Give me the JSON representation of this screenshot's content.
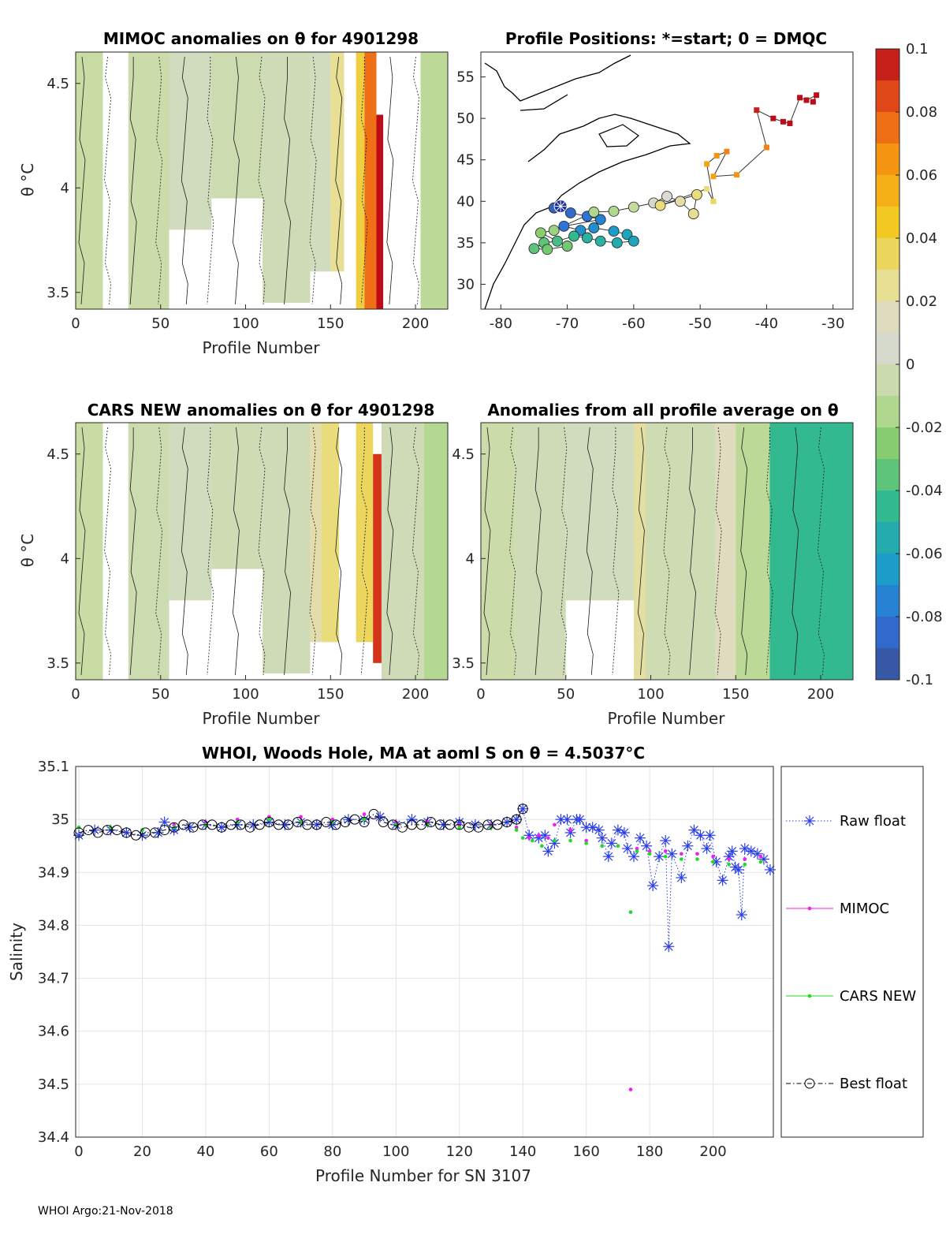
{
  "chart_data": [
    {
      "id": "mimoc",
      "type": "heatmap",
      "title": "MIMOC anomalies on θ  for 4901298",
      "xlabel": "Profile Number",
      "ylabel": "θ °C",
      "xlim": [
        0,
        219
      ],
      "ylim": [
        3.42,
        4.65
      ],
      "xticks": [
        0,
        50,
        100,
        150,
        200
      ],
      "yticks": [
        3.5,
        4,
        4.5
      ],
      "bands": [
        {
          "x0": 0,
          "x1": 16,
          "y0": 3.42,
          "y1": 4.65,
          "v": -0.008
        },
        {
          "x0": 31,
          "x1": 55,
          "y0": 3.42,
          "y1": 4.65,
          "v": -0.006
        },
        {
          "x0": 55,
          "x1": 80,
          "y0": 3.8,
          "y1": 4.65,
          "v": 0.0
        },
        {
          "x0": 80,
          "x1": 110,
          "y0": 3.95,
          "y1": 4.65,
          "v": -0.004
        },
        {
          "x0": 110,
          "x1": 138,
          "y0": 3.45,
          "y1": 4.65,
          "v": -0.002
        },
        {
          "x0": 138,
          "x1": 150,
          "y0": 3.6,
          "y1": 4.65,
          "v": 0.0
        },
        {
          "x0": 150,
          "x1": 158,
          "y0": 3.6,
          "y1": 4.65,
          "v": 0.025
        },
        {
          "x0": 165,
          "x1": 170,
          "y0": 3.42,
          "y1": 4.65,
          "v": 0.04
        },
        {
          "x0": 170,
          "x1": 177,
          "y0": 3.42,
          "y1": 4.65,
          "v": 0.075
        },
        {
          "x0": 177,
          "x1": 181,
          "y0": 3.42,
          "y1": 4.35,
          "v": 0.1
        },
        {
          "x0": 203,
          "x1": 219,
          "y0": 3.42,
          "y1": 4.65,
          "v": -0.012
        }
      ]
    },
    {
      "id": "map",
      "type": "scatter",
      "title": "Profile Positions: *=start; 0 = DMQC",
      "xlim": [
        -83,
        -27
      ],
      "ylim": [
        27,
        58
      ],
      "xticks": [
        -80,
        -70,
        -60,
        -50,
        -40,
        -30
      ],
      "yticks": [
        30,
        35,
        40,
        45,
        50,
        55
      ],
      "start": {
        "lon": -71,
        "lat": 39.4
      },
      "dmqc_points": [
        {
          "lon": -72,
          "lat": 39.2,
          "v": -0.09
        },
        {
          "lon": -69.5,
          "lat": 38.6,
          "v": -0.085
        },
        {
          "lon": -67,
          "lat": 38.2,
          "v": -0.08
        },
        {
          "lon": -65,
          "lat": 37.8,
          "v": -0.075
        },
        {
          "lon": -70.5,
          "lat": 37.0,
          "v": -0.08
        },
        {
          "lon": -68,
          "lat": 36.5,
          "v": -0.07
        },
        {
          "lon": -66,
          "lat": 36.8,
          "v": -0.07
        },
        {
          "lon": -63,
          "lat": 36.4,
          "v": -0.065
        },
        {
          "lon": -61,
          "lat": 36.0,
          "v": -0.06
        },
        {
          "lon": -60,
          "lat": 35.2,
          "v": -0.06
        },
        {
          "lon": -62.5,
          "lat": 35.0,
          "v": -0.055
        },
        {
          "lon": -65,
          "lat": 35.2,
          "v": -0.05
        },
        {
          "lon": -67,
          "lat": 35.6,
          "v": -0.05
        },
        {
          "lon": -69,
          "lat": 35.8,
          "v": -0.045
        },
        {
          "lon": -71.5,
          "lat": 35.2,
          "v": -0.04
        },
        {
          "lon": -73.5,
          "lat": 35.0,
          "v": -0.035
        },
        {
          "lon": -75,
          "lat": 34.3,
          "v": -0.035
        },
        {
          "lon": -73,
          "lat": 34.2,
          "v": -0.03
        },
        {
          "lon": -70,
          "lat": 34.6,
          "v": -0.03
        },
        {
          "lon": -74,
          "lat": 36.2,
          "v": -0.025
        },
        {
          "lon": -72,
          "lat": 36.5,
          "v": -0.02
        },
        {
          "lon": -66,
          "lat": 38.7,
          "v": -0.015
        },
        {
          "lon": -63,
          "lat": 38.8,
          "v": -0.015
        },
        {
          "lon": -60,
          "lat": 39.3,
          "v": -0.01
        },
        {
          "lon": -57,
          "lat": 39.8,
          "v": 0.005
        },
        {
          "lon": -55,
          "lat": 40.6,
          "v": 0.01
        },
        {
          "lon": -53,
          "lat": 40.0,
          "v": 0.02
        },
        {
          "lon": -51,
          "lat": 38.5,
          "v": 0.025
        },
        {
          "lon": -50.5,
          "lat": 40.8,
          "v": 0.03
        },
        {
          "lon": -56,
          "lat": 39.5,
          "v": 0.03
        }
      ],
      "realtime_points": [
        {
          "lon": -49,
          "lat": 41.5,
          "v": 0.03
        },
        {
          "lon": -48,
          "lat": 40.0,
          "v": 0.035
        },
        {
          "lon": -49,
          "lat": 44.5,
          "v": 0.06
        },
        {
          "lon": -47.5,
          "lat": 45.5,
          "v": 0.065
        },
        {
          "lon": -46,
          "lat": 46.0,
          "v": 0.07
        },
        {
          "lon": -48,
          "lat": 43.0,
          "v": 0.06
        },
        {
          "lon": -44.5,
          "lat": 43.2,
          "v": 0.065
        },
        {
          "lon": -40,
          "lat": 46.5,
          "v": 0.07
        },
        {
          "lon": -41.5,
          "lat": 51.0,
          "v": 0.095
        },
        {
          "lon": -39,
          "lat": 50.0,
          "v": 0.1
        },
        {
          "lon": -37.5,
          "lat": 49.6,
          "v": 0.1
        },
        {
          "lon": -36.5,
          "lat": 49.4,
          "v": 0.1
        },
        {
          "lon": -35,
          "lat": 52.5,
          "v": 0.1
        },
        {
          "lon": -34,
          "lat": 52.2,
          "v": 0.1
        },
        {
          "lon": -32.5,
          "lat": 52.8,
          "v": 0.1
        },
        {
          "lon": -33,
          "lat": 52.0,
          "v": 0.1
        }
      ]
    },
    {
      "id": "colorbar",
      "type": "colorbar",
      "ticks": [
        "0.1",
        "0.08",
        "0.06",
        "0.04",
        "0.02",
        "0",
        "-0.02",
        "-0.04",
        "-0.06",
        "-0.08",
        "-0.1"
      ],
      "range": [
        -0.1,
        0.1
      ],
      "stops": [
        "#3a4f95",
        "#2f6fd8",
        "#1aa0c8",
        "#30b890",
        "#7fcc6a",
        "#c8dca0",
        "#d9d9d9",
        "#e8e08a",
        "#f2c81f",
        "#f79a10",
        "#e8551a",
        "#bb0c1a"
      ]
    },
    {
      "id": "cars",
      "type": "heatmap",
      "title": "CARS NEW anomalies on θ for 4901298",
      "xlabel": "Profile Number",
      "ylabel": "θ °C",
      "xlim": [
        0,
        219
      ],
      "ylim": [
        3.42,
        4.65
      ],
      "xticks": [
        0,
        50,
        100,
        150,
        200
      ],
      "yticks": [
        3.5,
        4,
        4.5
      ],
      "bands": [
        {
          "x0": 0,
          "x1": 16,
          "y0": 3.42,
          "y1": 4.65,
          "v": -0.008
        },
        {
          "x0": 31,
          "x1": 55,
          "y0": 3.42,
          "y1": 4.65,
          "v": -0.004
        },
        {
          "x0": 55,
          "x1": 80,
          "y0": 3.8,
          "y1": 4.65,
          "v": 0.0
        },
        {
          "x0": 80,
          "x1": 110,
          "y0": 3.95,
          "y1": 4.65,
          "v": -0.003
        },
        {
          "x0": 110,
          "x1": 138,
          "y0": 3.45,
          "y1": 4.65,
          "v": -0.002
        },
        {
          "x0": 138,
          "x1": 145,
          "y0": 3.6,
          "y1": 4.65,
          "v": 0.02
        },
        {
          "x0": 145,
          "x1": 155,
          "y0": 3.6,
          "y1": 4.65,
          "v": 0.03
        },
        {
          "x0": 165,
          "x1": 175,
          "y0": 3.6,
          "y1": 4.65,
          "v": 0.035
        },
        {
          "x0": 175,
          "x1": 180,
          "y0": 3.5,
          "y1": 4.5,
          "v": 0.09
        },
        {
          "x0": 180,
          "x1": 205,
          "y0": 3.42,
          "y1": 4.65,
          "v": -0.002
        },
        {
          "x0": 205,
          "x1": 219,
          "y0": 3.42,
          "y1": 4.65,
          "v": -0.014
        }
      ]
    },
    {
      "id": "allavg",
      "type": "heatmap",
      "title": "Anomalies from all profile average on θ",
      "xlabel": "Profile Number",
      "xlim": [
        0,
        219
      ],
      "ylim": [
        3.42,
        4.65
      ],
      "xticks": [
        0,
        50,
        100,
        150,
        200
      ],
      "yticks": [
        3.5,
        4,
        4.5
      ],
      "bands": [
        {
          "x0": 0,
          "x1": 20,
          "y0": 3.42,
          "y1": 4.65,
          "v": -0.006
        },
        {
          "x0": 20,
          "x1": 50,
          "y0": 3.42,
          "y1": 4.65,
          "v": -0.002
        },
        {
          "x0": 50,
          "x1": 90,
          "y0": 3.8,
          "y1": 4.65,
          "v": 0.0
        },
        {
          "x0": 90,
          "x1": 97,
          "y0": 3.42,
          "y1": 4.65,
          "v": 0.022
        },
        {
          "x0": 97,
          "x1": 138,
          "y0": 3.42,
          "y1": 4.65,
          "v": -0.003
        },
        {
          "x0": 138,
          "x1": 150,
          "y0": 3.42,
          "y1": 4.65,
          "v": 0.015
        },
        {
          "x0": 150,
          "x1": 170,
          "y0": 3.42,
          "y1": 4.65,
          "v": -0.012
        },
        {
          "x0": 170,
          "x1": 219,
          "y0": 3.42,
          "y1": 4.65,
          "v": -0.045
        }
      ]
    },
    {
      "id": "salinity",
      "type": "line",
      "title": "WHOI, Woods Hole, MA at aoml S on θ = 4.5037°C",
      "xlabel": "Profile Number for SN 3107",
      "ylabel": "Salinity",
      "xlim": [
        -1,
        219
      ],
      "ylim": [
        34.4,
        35.1
      ],
      "xticks": [
        0,
        20,
        40,
        60,
        80,
        100,
        120,
        140,
        160,
        180,
        200
      ],
      "yticks": [
        34.4,
        34.5,
        34.6,
        34.7,
        34.8,
        34.9,
        35,
        35.1
      ],
      "grid": true,
      "legend_position": "outside-right",
      "series": [
        {
          "name": "Raw float",
          "x": [
            0,
            5,
            10,
            15,
            20,
            25,
            27,
            30,
            35,
            40,
            45,
            50,
            55,
            60,
            65,
            70,
            75,
            80,
            85,
            90,
            95,
            100,
            105,
            110,
            115,
            120,
            125,
            130,
            135,
            138,
            140,
            142,
            145,
            147,
            148,
            150,
            152,
            154,
            155,
            157,
            158,
            160,
            162,
            164,
            165,
            167,
            168,
            170,
            172,
            173,
            175,
            177,
            179,
            181,
            183,
            185,
            186,
            187,
            190,
            192,
            194,
            196,
            198,
            199,
            201,
            203,
            205,
            206,
            207,
            208,
            209,
            210,
            212,
            214,
            216,
            218
          ],
          "y": [
            34.97,
            34.98,
            34.98,
            34.975,
            34.97,
            34.975,
            34.995,
            34.98,
            34.985,
            34.99,
            34.985,
            34.99,
            34.99,
            34.995,
            34.99,
            34.995,
            34.99,
            34.99,
            35.0,
            35.0,
            35.005,
            34.99,
            35.0,
            34.995,
            34.99,
            34.995,
            34.99,
            34.99,
            34.995,
            35.0,
            35.02,
            34.97,
            34.965,
            34.97,
            34.94,
            34.955,
            35.0,
            35.0,
            34.975,
            35.0,
            35.0,
            34.985,
            34.985,
            34.98,
            34.965,
            34.93,
            34.955,
            34.98,
            34.975,
            34.945,
            34.93,
            34.965,
            34.95,
            34.875,
            34.93,
            34.96,
            34.76,
            34.935,
            34.89,
            34.95,
            34.98,
            34.97,
            34.945,
            34.97,
            34.92,
            34.885,
            34.93,
            34.94,
            34.91,
            34.905,
            34.82,
            34.945,
            34.94,
            34.935,
            34.925,
            34.905
          ]
        },
        {
          "name": "MIMOC",
          "x": [
            0,
            10,
            20,
            30,
            40,
            50,
            60,
            70,
            80,
            90,
            100,
            110,
            120,
            130,
            138,
            142,
            145,
            148,
            150,
            155,
            160,
            165,
            170,
            174,
            176,
            180,
            185,
            190,
            195,
            200,
            205,
            210,
            215
          ],
          "y": [
            34.985,
            34.985,
            34.98,
            34.99,
            34.995,
            35.0,
            35.005,
            35.005,
            35.0,
            35.01,
            34.995,
            34.995,
            34.99,
            34.99,
            34.985,
            34.965,
            34.97,
            34.965,
            34.99,
            34.98,
            34.96,
            34.95,
            34.95,
            34.49,
            34.945,
            34.94,
            34.94,
            34.935,
            34.935,
            34.93,
            34.925,
            34.925,
            34.93
          ]
        },
        {
          "name": "CARS NEW",
          "x": [
            0,
            10,
            20,
            30,
            40,
            50,
            60,
            70,
            80,
            90,
            100,
            110,
            120,
            130,
            138,
            140,
            143,
            146,
            150,
            155,
            160,
            165,
            170,
            174,
            176,
            180,
            185,
            190,
            195,
            200,
            205,
            210,
            215
          ],
          "y": [
            34.985,
            34.985,
            34.98,
            34.985,
            34.99,
            34.995,
            35.0,
            34.995,
            34.995,
            35.0,
            34.99,
            34.99,
            34.985,
            34.985,
            34.98,
            34.965,
            34.96,
            34.95,
            34.96,
            34.96,
            34.955,
            34.95,
            34.95,
            34.825,
            34.94,
            34.935,
            34.93,
            34.925,
            34.925,
            34.92,
            34.915,
            34.915,
            34.92
          ]
        },
        {
          "name": "Best float",
          "x": [
            0,
            3,
            6,
            9,
            12,
            15,
            18,
            21,
            24,
            27,
            30,
            33,
            36,
            39,
            42,
            45,
            48,
            51,
            54,
            57,
            60,
            63,
            66,
            69,
            72,
            75,
            78,
            81,
            84,
            87,
            90,
            93,
            96,
            99,
            102,
            105,
            108,
            111,
            114,
            117,
            120,
            123,
            126,
            129,
            132,
            135,
            138,
            140
          ],
          "y": [
            34.975,
            34.98,
            34.975,
            34.98,
            34.98,
            34.975,
            34.97,
            34.975,
            34.975,
            34.98,
            34.985,
            34.99,
            34.985,
            34.99,
            34.99,
            34.985,
            34.99,
            34.99,
            34.985,
            34.99,
            34.995,
            34.99,
            34.99,
            34.995,
            34.99,
            34.99,
            34.995,
            34.99,
            34.995,
            35.0,
            34.995,
            35.01,
            34.995,
            34.99,
            34.985,
            34.99,
            34.99,
            34.995,
            34.99,
            34.99,
            34.99,
            34.985,
            34.985,
            34.99,
            34.99,
            34.995,
            35.0,
            35.02
          ]
        }
      ]
    }
  ],
  "footer": {
    "text": "WHOI Argo:21-Nov-2018"
  }
}
